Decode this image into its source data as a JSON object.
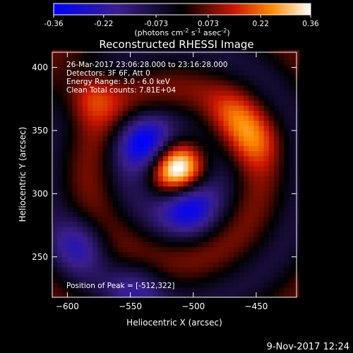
{
  "chart_data": {
    "type": "heatmap",
    "title": "Reconstructed RHESSI Image",
    "xlabel": "Heliocentric X (arcsec)",
    "ylabel": "Heliocentric Y (arcsec)",
    "xlim": [
      -612,
      -418
    ],
    "ylim": [
      218,
      412
    ],
    "x_ticks": [
      -600,
      -550,
      -500,
      -450
    ],
    "y_ticks": [
      250,
      300,
      350,
      400
    ],
    "colorbar": {
      "min": -0.36,
      "max": 0.36,
      "ticks": [
        "-0.36",
        "-0.22",
        "-0.073",
        "0.073",
        "0.22",
        "0.36"
      ],
      "unit_prefix": "(photons cm",
      "unit_exp1": "-2",
      "unit_mid": " s",
      "unit_exp2": "-1",
      "unit_mid2": " asec",
      "unit_exp3": "-2",
      "unit_suffix": ")"
    },
    "annotations": [
      "26-Mar-2017 23:06:28.000 to 23:16:28.000",
      "Detectors: 3F 6F, Att 0",
      "Energy Range: 3.0 - 6.0 keV",
      "Clean     Total counts: 7.81E+04"
    ],
    "peak_label": "Position of Peak = [-512,322]",
    "peak": {
      "x": -512,
      "y": 322,
      "value": 0.36
    },
    "sources": [
      {
        "kind": "positive",
        "x": -512,
        "y": 322,
        "value": 0.36
      },
      {
        "kind": "positive",
        "x": -582,
        "y": 378,
        "value": 0.2
      },
      {
        "kind": "positive",
        "x": -452,
        "y": 342,
        "value": 0.14
      },
      {
        "kind": "positive",
        "x": -468,
        "y": 362,
        "value": 0.12
      },
      {
        "kind": "negative",
        "x": -538,
        "y": 340,
        "value": -0.3
      },
      {
        "kind": "negative",
        "x": -505,
        "y": 292,
        "value": -0.28
      },
      {
        "kind": "negative",
        "x": -590,
        "y": 260,
        "value": -0.18
      },
      {
        "kind": "negative",
        "x": -545,
        "y": 225,
        "value": -0.15
      }
    ]
  },
  "footer": {
    "timestamp": "9-Nov-2017 12:24"
  }
}
